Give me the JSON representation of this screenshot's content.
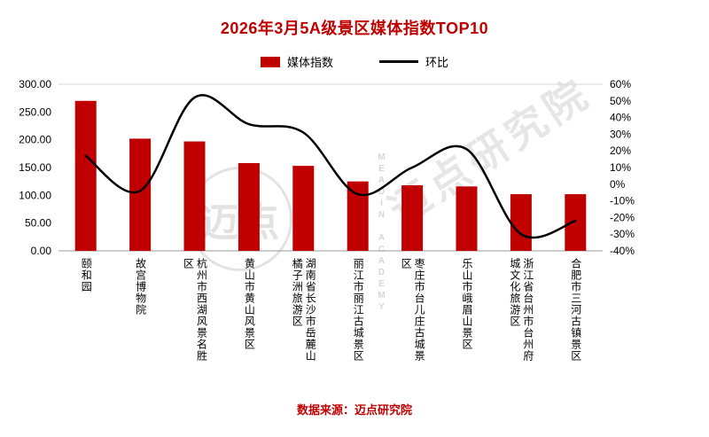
{
  "title": "2026年3月5A级景区媒体指数TOP10",
  "legend": {
    "bar_label": "媒体指数",
    "line_label": "环比"
  },
  "footer": {
    "source": "数据来源：迈点研究院"
  },
  "watermarks": {
    "diagonal_text": "迈点研究院",
    "seal_text": "迈点",
    "seal_en_vertical": "MEADIN ACADEMY"
  },
  "colors": {
    "bar": "#C00000",
    "line": "#000000",
    "accent_red": "#C00000",
    "watermark_gray": "#D9D9D9",
    "axis_line": "#9b9b9b",
    "gridline": "#d9d9d9"
  },
  "chart_data": {
    "type": "bar",
    "combo": "bar+line",
    "title": "2026年3月5A级景区媒体指数TOP10",
    "legend_position": "top",
    "grid": "none",
    "categories": [
      "颐和园",
      "故宫博物院",
      "杭州市西湖风景名胜区",
      "黄山市黄山风景区",
      "湖南省长沙市岳麓山橘子洲旅游区",
      "丽江市丽江古城景区",
      "枣庄市台儿庄古城景区",
      "乐山市峨眉山景区",
      "浙江省台州市台州府城文化旅游区",
      "合肥市三河古镇景区"
    ],
    "series": [
      {
        "name": "媒体指数",
        "type": "bar",
        "axis": "left",
        "values": [
          270,
          202,
          197,
          158,
          153,
          125,
          118,
          116,
          102,
          102
        ]
      },
      {
        "name": "环比",
        "type": "line",
        "axis": "right",
        "unit": "%",
        "values": [
          17,
          -4,
          52,
          36,
          31,
          -6,
          10,
          21,
          -30,
          -22
        ]
      }
    ],
    "left_axis": {
      "min": 0,
      "max": 300,
      "step": 50,
      "labels_top_to_bottom": [
        "300.00",
        "250.00",
        "200.00",
        "150.00",
        "100.00",
        "50.00",
        "0.00"
      ]
    },
    "right_axis": {
      "min": -40,
      "max": 60,
      "step": 10,
      "labels_top_to_bottom": [
        "60%",
        "50%",
        "40%",
        "30%",
        "20%",
        "10%",
        "0%",
        "-10%",
        "-20%",
        "-30%",
        "-40%"
      ]
    }
  }
}
